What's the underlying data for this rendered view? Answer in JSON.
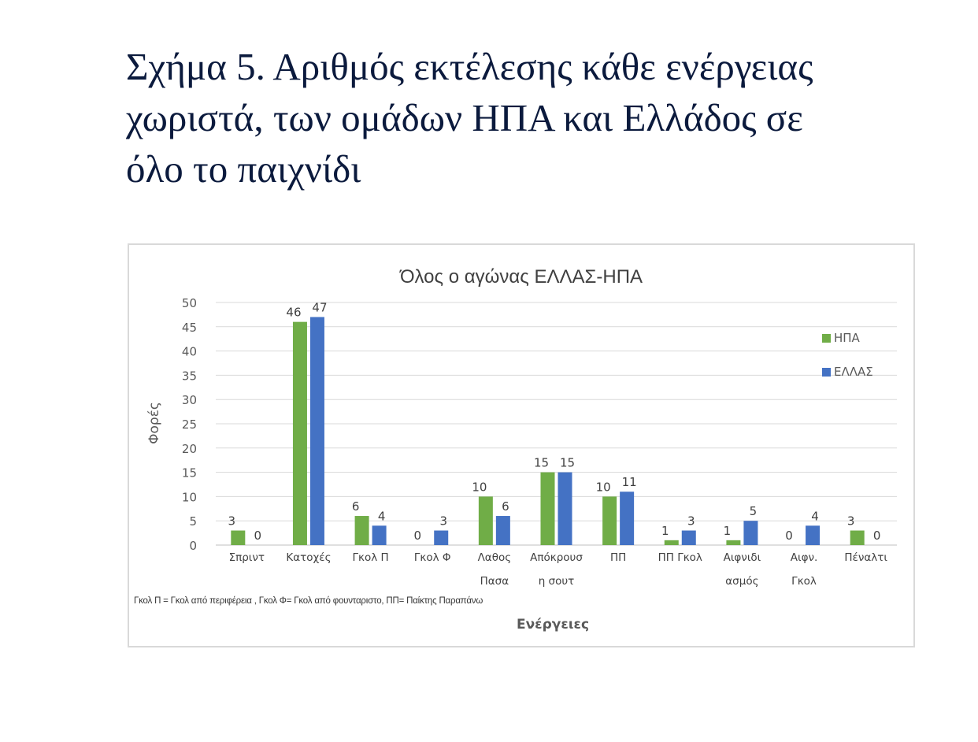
{
  "slide": {
    "title_line1": "Σχήμα 5. Αριθμός εκτέλεσης κάθε ενέργειας",
    "title_line2": "χωριστά, των ομάδων ΗΠΑ και Ελλάδος σε",
    "title_line3": "όλο το παιχνίδι"
  },
  "chart_data": {
    "type": "bar",
    "title": "Όλος ο αγώνας ΕΛΛΑΣ-ΗΠΑ",
    "xlabel": "Ενέργειες",
    "ylabel": "Φορές",
    "ylim": [
      0,
      50
    ],
    "yticks": [
      0,
      5,
      10,
      15,
      20,
      25,
      30,
      35,
      40,
      45,
      50
    ],
    "grid": true,
    "legend_position": "right",
    "categories": [
      [
        "Σπριντ"
      ],
      [
        "Κατοχές"
      ],
      [
        "Γκολ Π"
      ],
      [
        "Γκολ Φ"
      ],
      [
        "Λαθος",
        "Πασα"
      ],
      [
        "Απόκρουσ",
        "η σουτ"
      ],
      [
        "ΠΠ"
      ],
      [
        "ΠΠ Γκολ"
      ],
      [
        "Αιφνιδι",
        "ασμός"
      ],
      [
        "Αιφν.",
        "Γκολ"
      ],
      [
        "Πέναλτι"
      ]
    ],
    "series": [
      {
        "name": "ΗΠΑ",
        "color": "#70ad47",
        "values": [
          3,
          46,
          6,
          0,
          10,
          15,
          10,
          1,
          1,
          0,
          3
        ]
      },
      {
        "name": "ΕΛΛΑΣ",
        "color": "#4472c4",
        "values": [
          0,
          47,
          4,
          3,
          6,
          15,
          11,
          3,
          5,
          4,
          0
        ]
      }
    ],
    "note": "Γκολ Π = Γκολ από περιφέρεια , Γκολ Φ=  Γκολ από φουνταριστο, ΠΠ= Παίκτης  Παραπάνω"
  }
}
